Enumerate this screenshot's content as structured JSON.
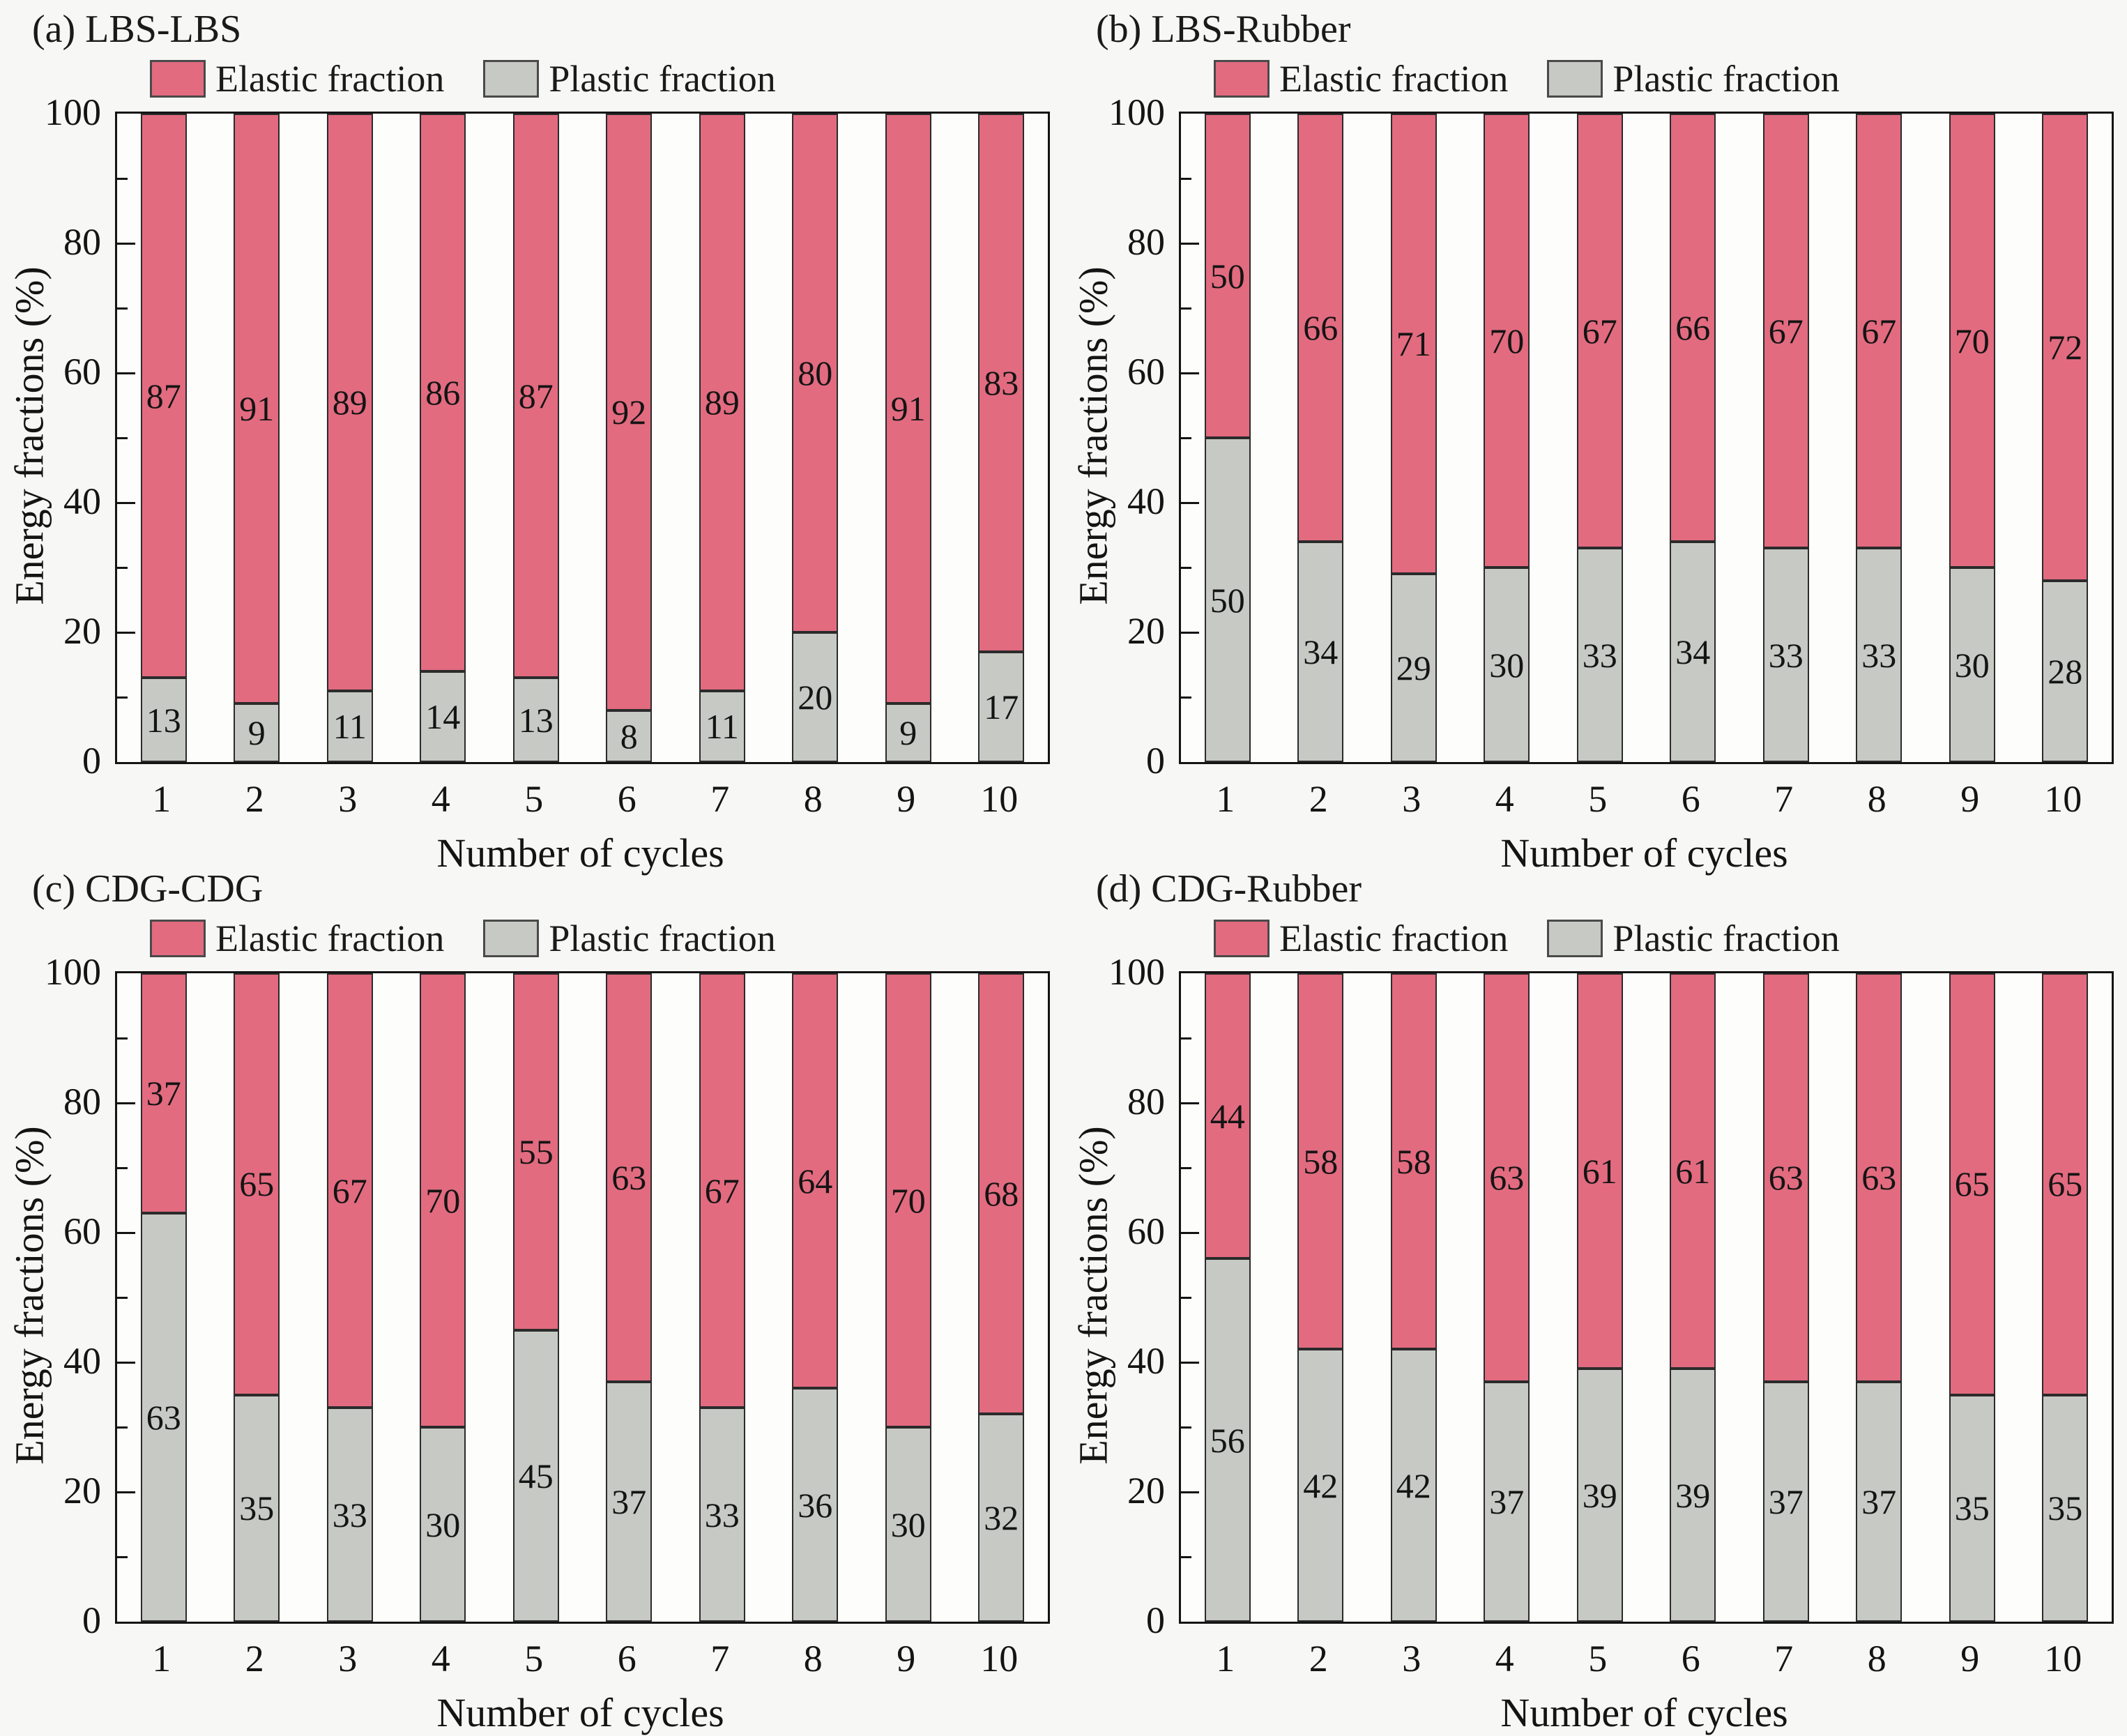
{
  "figure": {
    "ylabel": "Energy fractions (%)",
    "xlabel": "Number of cycles",
    "legend": [
      {
        "name": "Elastic fraction",
        "color": "#e26b80"
      },
      {
        "name": "Plastic fraction",
        "color": "#c7c9c4"
      }
    ],
    "colors": {
      "elastic": "#e26b80",
      "plastic": "#c7c9c4",
      "bar_border": "#2b2b2b",
      "axis": "#141414",
      "background": "#f7f7f5"
    },
    "y_major_ticks": [
      0,
      20,
      40,
      60,
      80,
      100
    ],
    "y_minor_ticks": [
      10,
      30,
      50,
      70,
      90
    ]
  },
  "chart_data": [
    {
      "type": "bar",
      "stacked": true,
      "panel": "a",
      "title": "(a) LBS-LBS",
      "categories": [
        1,
        2,
        3,
        4,
        5,
        6,
        7,
        8,
        9,
        10
      ],
      "series": [
        {
          "name": "Plastic fraction",
          "values": [
            13,
            9,
            11,
            14,
            13,
            8,
            11,
            20,
            9,
            17
          ]
        },
        {
          "name": "Elastic fraction",
          "values": [
            87,
            91,
            89,
            86,
            87,
            92,
            89,
            80,
            91,
            83
          ]
        }
      ],
      "xlabel": "Number of cycles",
      "ylabel": "Energy fractions (%)",
      "ylim": [
        0,
        100
      ],
      "legend_position": "top",
      "grid": false
    },
    {
      "type": "bar",
      "stacked": true,
      "panel": "b",
      "title": "(b) LBS-Rubber",
      "categories": [
        1,
        2,
        3,
        4,
        5,
        6,
        7,
        8,
        9,
        10
      ],
      "series": [
        {
          "name": "Plastic fraction",
          "values": [
            50,
            34,
            29,
            30,
            33,
            34,
            33,
            33,
            30,
            28
          ]
        },
        {
          "name": "Elastic fraction",
          "values": [
            50,
            66,
            71,
            70,
            67,
            66,
            67,
            67,
            70,
            72
          ]
        }
      ],
      "xlabel": "Number of cycles",
      "ylabel": "Energy fractions (%)",
      "ylim": [
        0,
        100
      ],
      "legend_position": "top",
      "grid": false
    },
    {
      "type": "bar",
      "stacked": true,
      "panel": "c",
      "title": "(c) CDG-CDG",
      "categories": [
        1,
        2,
        3,
        4,
        5,
        6,
        7,
        8,
        9,
        10
      ],
      "series": [
        {
          "name": "Plastic fraction",
          "values": [
            63,
            35,
            33,
            30,
            45,
            37,
            33,
            36,
            30,
            32
          ]
        },
        {
          "name": "Elastic fraction",
          "values": [
            37,
            65,
            67,
            70,
            55,
            63,
            67,
            64,
            70,
            68
          ]
        }
      ],
      "xlabel": "Number of cycles",
      "ylabel": "Energy fractions (%)",
      "ylim": [
        0,
        100
      ],
      "legend_position": "top",
      "grid": false
    },
    {
      "type": "bar",
      "stacked": true,
      "panel": "d",
      "title": "(d) CDG-Rubber",
      "categories": [
        1,
        2,
        3,
        4,
        5,
        6,
        7,
        8,
        9,
        10
      ],
      "series": [
        {
          "name": "Plastic fraction",
          "values": [
            56,
            42,
            42,
            37,
            39,
            39,
            37,
            37,
            35,
            35
          ]
        },
        {
          "name": "Elastic fraction",
          "values": [
            44,
            58,
            58,
            63,
            61,
            61,
            63,
            63,
            65,
            65
          ]
        }
      ],
      "xlabel": "Number of cycles",
      "ylabel": "Energy fractions (%)",
      "ylim": [
        0,
        100
      ],
      "legend_position": "top",
      "grid": false
    }
  ]
}
